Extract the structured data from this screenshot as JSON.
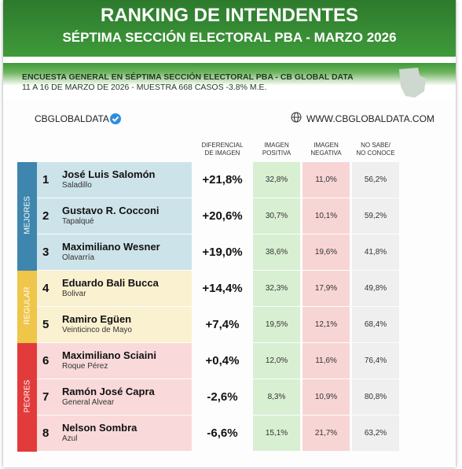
{
  "header": {
    "title": "RANKING DE INTENDENTES",
    "subtitle": "SÉPTIMA SECCIÓN ELECTORAL PBA - MARZO 2026"
  },
  "survey": {
    "line1": "ENCUESTA GENERAL EN SÉPTIMA SECCIÓN ELECTORAL PBA - CB GLOBAL DATA",
    "line2": "11 A 16 DE MARZO  DE 2026 - MUESTRA 668  CASOS -3.8% M.E."
  },
  "brand": {
    "name": "CBGLOBALDATA",
    "url": "WWW.CBGLOBALDATA.COM"
  },
  "table": {
    "columns": [
      [
        "DIFERENCIAL",
        "DE IMAGEN"
      ],
      [
        "IMAGEN",
        "POSITIVA"
      ],
      [
        "IMAGEN",
        "NEGATIVA"
      ],
      [
        "NO SABE/",
        "NO CONOCE"
      ]
    ],
    "groups": [
      {
        "label": "MEJORES",
        "rows": [
          [
            "1",
            "José Luis Salomón",
            "Saladillo",
            "+21,8%",
            "32,8%",
            "11,0%",
            "56,2%"
          ],
          [
            "2",
            "Gustavo R. Cocconi",
            "Tapalqué",
            "+20,6%",
            "30,7%",
            "10,1%",
            "59,2%"
          ],
          [
            "3",
            "Maximiliano Wesner",
            "Olavarría",
            "+19,0%",
            "38,6%",
            "19,6%",
            "41,8%"
          ]
        ]
      },
      {
        "label": "REGULAR",
        "rows": [
          [
            "4",
            "Eduardo Bali Bucca",
            "Bolivar",
            "+14,4%",
            "32,3%",
            "17,9%",
            "49,8%"
          ],
          [
            "5",
            "Ramiro Egüen",
            "Veinticinco de Mayo",
            "+7,4%",
            "19,5%",
            "12,1%",
            "68,4%"
          ]
        ]
      },
      {
        "label": "PEORES",
        "rows": [
          [
            "6",
            "Maximiliano Sciaini",
            "Roque Pérez",
            "+0,4%",
            "12,0%",
            "11,6%",
            "76,4%"
          ],
          [
            "7",
            "Ramón José Capra",
            "General Alvear",
            "-2,6%",
            "8,3%",
            "10,9%",
            "80,8%"
          ],
          [
            "8",
            "Nelson Sombra",
            "Azul",
            "-6,6%",
            "15,1%",
            "21,7%",
            "63,2%"
          ]
        ]
      }
    ]
  }
}
